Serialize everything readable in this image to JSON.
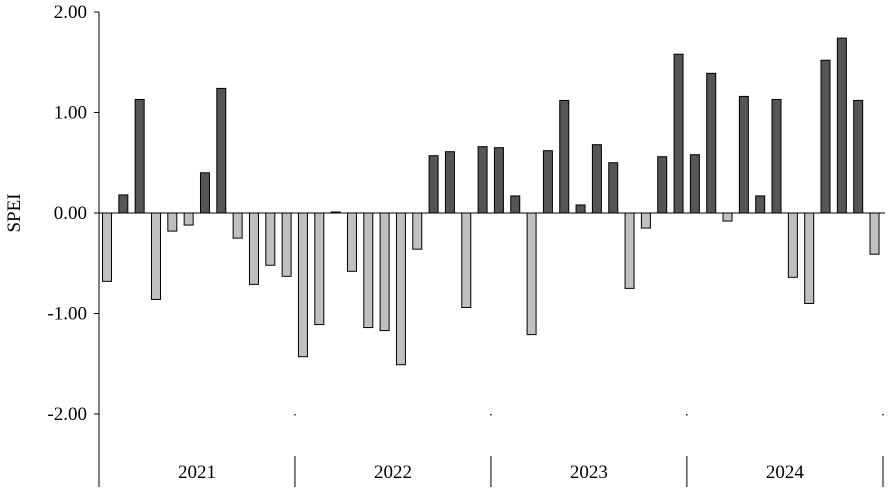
{
  "chart_data": {
    "type": "bar",
    "title": "",
    "xlabel": "",
    "ylabel": "SPEI",
    "ylim": [
      -2.0,
      2.0
    ],
    "yticks": [
      "2.00",
      "1.00",
      "0.00",
      "-1.00",
      "-2.00"
    ],
    "ytick_values": [
      2,
      1,
      0,
      -1,
      -2
    ],
    "years": [
      "2021",
      "2022",
      "2023",
      "2024"
    ],
    "months_per_year": 12,
    "grid": false,
    "legend": "none",
    "colors": {
      "positive": "#555555",
      "negative": "#c0c0c0",
      "outline": "#000000"
    },
    "values": [
      -0.68,
      0.18,
      1.13,
      -0.86,
      -0.18,
      -0.12,
      0.4,
      1.24,
      -0.25,
      -0.71,
      -0.52,
      -0.63,
      -1.43,
      -1.11,
      0.01,
      -0.58,
      -1.14,
      -1.17,
      -1.51,
      -0.36,
      0.57,
      0.61,
      -0.94,
      0.66,
      0.65,
      0.17,
      -1.21,
      0.62,
      1.12,
      0.08,
      0.68,
      0.5,
      -0.75,
      -0.15,
      0.56,
      1.58,
      0.58,
      1.39,
      -0.08,
      1.16,
      0.17,
      1.13,
      -0.64,
      -0.9,
      1.52,
      1.74,
      1.12,
      -0.41
    ]
  }
}
